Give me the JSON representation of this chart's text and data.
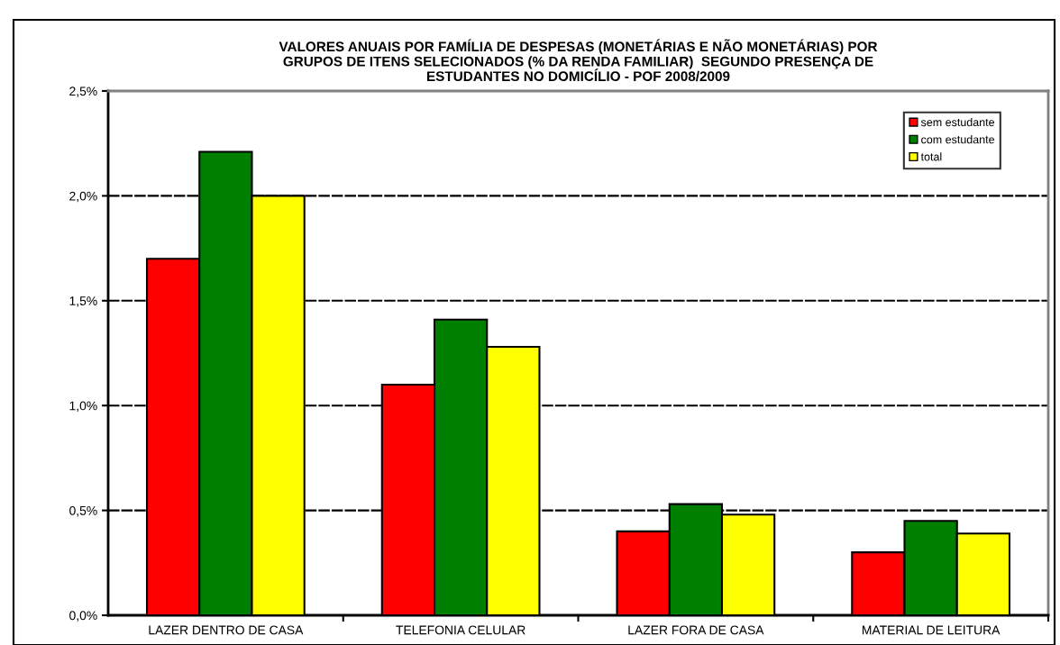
{
  "chart_data": {
    "type": "bar",
    "title": "VALORES ANUAIS POR FAMÍLIA DE DESPESAS (MONETÁRIAS E NÃO MONETÁRIAS) POR\nGRUPOS DE ITENS SELECIONADOS (% DA RENDA FAMILIAR)  SEGUNDO PRESENÇA DE\nESTUDANTES NO DOMICÍLIO - POF 2008/2009",
    "categories": [
      "LAZER DENTRO DE CASA",
      "TELEFONIA CELULAR",
      "LAZER FORA DE CASA",
      "MATERIAL DE LEITURA"
    ],
    "series": [
      {
        "name": "sem estudante",
        "color": "#ff0000",
        "values": [
          1.7,
          1.1,
          0.4,
          0.3
        ]
      },
      {
        "name": "com estudante",
        "color": "#008000",
        "values": [
          2.21,
          1.41,
          0.53,
          0.45
        ]
      },
      {
        "name": "total",
        "color": "#ffff00",
        "values": [
          2.0,
          1.28,
          0.48,
          0.39
        ]
      }
    ],
    "ylim": [
      0,
      2.5
    ],
    "yticks": [
      {
        "value": 0,
        "label": "0,0%"
      },
      {
        "value": 0.5,
        "label": "0,5%"
      },
      {
        "value": 1.0,
        "label": "1,0%"
      },
      {
        "value": 1.5,
        "label": "1,5%"
      },
      {
        "value": 2.0,
        "label": "2,0%"
      },
      {
        "value": 2.5,
        "label": "2,5%"
      }
    ],
    "grid": "y",
    "legend": "top right"
  }
}
